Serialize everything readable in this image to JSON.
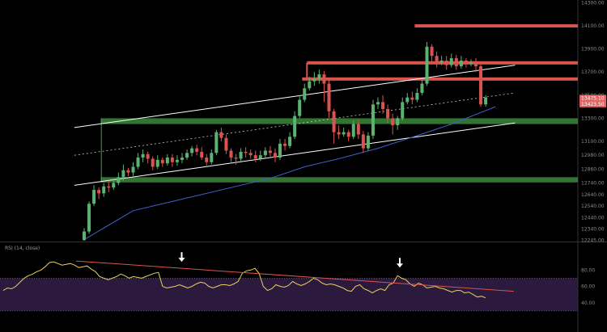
{
  "chart_data": [
    {
      "type": "candlestick",
      "ylim": [
        12240,
        14310
      ],
      "y_ticks": [
        "14300.00",
        "14100.00",
        "13900.00",
        "13700.00",
        "13500.00",
        "13300.00",
        "13100.00",
        "12980.00",
        "12860.00",
        "12740.00",
        "12640.00",
        "12540.00",
        "12440.00",
        "12340.00",
        "12245.00"
      ],
      "y_tick_values": [
        14300,
        14100,
        13900,
        13700,
        13500,
        13300,
        13100,
        12980,
        12860,
        12740,
        12640,
        12540,
        12440,
        12340,
        12245
      ],
      "price_tags": [
        {
          "label": "13475.10",
          "value": 13475,
          "color": "#e06666"
        },
        {
          "label": "13423.50",
          "value": 13423,
          "color": "#e06666"
        }
      ],
      "candles": [
        [
          12245,
          12320,
          12240,
          12350
        ],
        [
          12320,
          12560,
          12300,
          12580
        ],
        [
          12560,
          12680,
          12540,
          12720
        ],
        [
          12680,
          12650,
          12600,
          12700
        ],
        [
          12650,
          12710,
          12620,
          12740
        ],
        [
          12710,
          12700,
          12660,
          12760
        ],
        [
          12700,
          12740,
          12680,
          12780
        ],
        [
          12740,
          12790,
          12720,
          12830
        ],
        [
          12790,
          12850,
          12760,
          12900
        ],
        [
          12850,
          12830,
          12800,
          12870
        ],
        [
          12830,
          12880,
          12800,
          12920
        ],
        [
          12880,
          12960,
          12860,
          13000
        ],
        [
          12960,
          12990,
          12920,
          13030
        ],
        [
          12990,
          12950,
          12910,
          13010
        ],
        [
          12950,
          12880,
          12850,
          12970
        ],
        [
          12880,
          12940,
          12860,
          12980
        ],
        [
          12940,
          12910,
          12880,
          12960
        ],
        [
          12910,
          12960,
          12890,
          12990
        ],
        [
          12960,
          12920,
          12880,
          12990
        ],
        [
          12920,
          12940,
          12890,
          12980
        ],
        [
          12940,
          12960,
          12910,
          13000
        ],
        [
          12960,
          13000,
          12940,
          13030
        ],
        [
          13000,
          13040,
          12970,
          13060
        ],
        [
          13040,
          13010,
          12980,
          13070
        ],
        [
          13010,
          12960,
          12940,
          13050
        ],
        [
          12960,
          12920,
          12890,
          12990
        ],
        [
          12920,
          13000,
          12900,
          13030
        ],
        [
          13000,
          13180,
          12980,
          13200
        ],
        [
          13180,
          13130,
          13100,
          13220
        ],
        [
          13130,
          13020,
          12990,
          13160
        ],
        [
          13020,
          12960,
          12920,
          13040
        ],
        [
          12960,
          12950,
          12900,
          12990
        ],
        [
          12950,
          13010,
          12930,
          13040
        ],
        [
          13010,
          13000,
          12960,
          13050
        ],
        [
          13000,
          12980,
          12950,
          13030
        ],
        [
          12980,
          12950,
          12920,
          13020
        ],
        [
          12950,
          12980,
          12930,
          13020
        ],
        [
          12980,
          13020,
          12960,
          13050
        ],
        [
          13020,
          13000,
          12970,
          13060
        ],
        [
          13000,
          12960,
          12920,
          13040
        ],
        [
          12960,
          13080,
          12940,
          13120
        ],
        [
          13080,
          13060,
          13020,
          13120
        ],
        [
          13060,
          13140,
          13040,
          13180
        ],
        [
          13140,
          13320,
          13120,
          13360
        ],
        [
          13320,
          13460,
          13300,
          13500
        ],
        [
          13460,
          13560,
          13440,
          13600
        ],
        [
          13560,
          13620,
          13540,
          13660
        ],
        [
          13620,
          13640,
          13580,
          13700
        ],
        [
          13640,
          13680,
          13600,
          13720
        ],
        [
          13680,
          13600,
          13440,
          13710
        ],
        [
          13600,
          13360,
          13300,
          13640
        ],
        [
          13360,
          13180,
          13080,
          13380
        ],
        [
          13180,
          13160,
          13120,
          13240
        ],
        [
          13160,
          13180,
          13140,
          13220
        ],
        [
          13180,
          13140,
          13100,
          13200
        ],
        [
          13140,
          13250,
          13120,
          13280
        ],
        [
          13250,
          13160,
          13120,
          13280
        ],
        [
          13160,
          13040,
          13000,
          13190
        ],
        [
          13040,
          13150,
          13020,
          13180
        ],
        [
          13150,
          13420,
          13120,
          13460
        ],
        [
          13420,
          13440,
          13380,
          13480
        ],
        [
          13440,
          13380,
          13340,
          13500
        ],
        [
          13380,
          13300,
          13260,
          13420
        ],
        [
          13300,
          13240,
          13160,
          13340
        ],
        [
          13240,
          13300,
          13200,
          13320
        ],
        [
          13300,
          13440,
          13280,
          13480
        ],
        [
          13440,
          13480,
          13420,
          13520
        ],
        [
          13480,
          13460,
          13420,
          13530
        ],
        [
          13460,
          13520,
          13440,
          13560
        ],
        [
          13520,
          13600,
          13500,
          13640
        ],
        [
          13600,
          13920,
          13580,
          13960
        ],
        [
          13920,
          13840,
          13780,
          13940
        ],
        [
          13840,
          13780,
          13740,
          13880
        ],
        [
          13780,
          13800,
          13760,
          13840
        ],
        [
          13800,
          13760,
          13720,
          13840
        ],
        [
          13760,
          13820,
          13740,
          13860
        ],
        [
          13820,
          13750,
          13720,
          13850
        ],
        [
          13750,
          13800,
          13730,
          13840
        ],
        [
          13800,
          13770,
          13740,
          13820
        ],
        [
          13770,
          13780,
          13750,
          13810
        ],
        [
          13780,
          13750,
          13700,
          13820
        ],
        [
          13750,
          13420,
          13400,
          13780
        ],
        [
          13420,
          13480,
          13400,
          13500
        ]
      ],
      "ma_line": [
        [
          0,
          12250
        ],
        [
          10,
          12500
        ],
        [
          20,
          12600
        ],
        [
          30,
          12700
        ],
        [
          38,
          12780
        ],
        [
          45,
          12880
        ],
        [
          52,
          12950
        ],
        [
          60,
          13040
        ],
        [
          68,
          13150
        ],
        [
          75,
          13250
        ],
        [
          81,
          13350
        ],
        [
          84,
          13400
        ]
      ],
      "horizontal_zones": [
        {
          "kind": "support",
          "low": 13250,
          "high": 13300,
          "color": "#3b8a3b",
          "from": 4
        },
        {
          "kind": "support",
          "low": 12745,
          "high": 12790,
          "color": "#3b8a3b",
          "from": 4
        },
        {
          "kind": "resistance",
          "value": 14100,
          "color": "#d9534f",
          "from": 68
        },
        {
          "kind": "resistance",
          "value": 13780,
          "color": "#d9534f",
          "from": 46
        },
        {
          "kind": "resistance",
          "value": 13640,
          "color": "#d9534f",
          "from": 45
        }
      ],
      "channel_lines": [
        {
          "style": "solid",
          "color": "#ffffff",
          "start": [
            -2,
            13220
          ],
          "end": [
            88,
            13760
          ]
        },
        {
          "style": "dashed",
          "color": "#cccccc",
          "start": [
            -2,
            12980
          ],
          "end": [
            88,
            13520
          ]
        },
        {
          "style": "solid",
          "color": "#ffffff",
          "start": [
            -2,
            12720
          ],
          "end": [
            88,
            13260
          ]
        }
      ]
    },
    {
      "type": "line",
      "label": "RSI (14, close)",
      "ylim": [
        20,
        100
      ],
      "y_ticks": [
        "80.00",
        "60.00",
        "40.00"
      ],
      "y_tick_values": [
        80,
        60,
        40
      ],
      "band": [
        30,
        70
      ],
      "values": [
        55,
        58,
        57,
        60,
        65,
        70,
        73,
        75,
        78,
        80,
        84,
        89,
        90,
        88,
        86,
        87,
        88,
        86,
        83,
        84,
        85,
        81,
        78,
        72,
        70,
        68,
        70,
        72,
        75,
        73,
        70,
        72,
        71,
        70,
        72,
        74,
        76,
        77,
        60,
        58,
        59,
        60,
        62,
        60,
        58,
        60,
        63,
        65,
        64,
        60,
        58,
        60,
        62,
        62,
        61,
        63,
        66,
        76,
        79,
        80,
        82,
        76,
        60,
        55,
        57,
        62,
        60,
        59,
        61,
        66,
        63,
        61,
        63,
        66,
        70,
        68,
        64,
        62,
        63,
        62,
        60,
        58,
        55,
        54,
        60,
        62,
        57,
        55,
        52,
        55,
        57,
        55,
        62,
        64,
        73,
        70,
        68,
        63,
        60,
        64,
        62,
        58,
        59,
        60,
        58,
        57,
        55,
        53,
        55,
        55,
        52,
        53,
        50,
        47,
        48,
        46
      ],
      "trend_line": {
        "color": "#d9534f",
        "start": [
          0,
          91
        ],
        "end": [
          114,
          54
        ]
      },
      "markers": [
        {
          "at": 41,
          "value": 86
        },
        {
          "at": 93,
          "value": 79
        }
      ]
    }
  ],
  "indicator_label": "RSI (14, close)",
  "colors": {
    "up": "#5cb270",
    "down": "#d9534f",
    "ma": "#4060d0",
    "rsi": "#e8d25a",
    "rsi_band": "#2b1a3d"
  }
}
